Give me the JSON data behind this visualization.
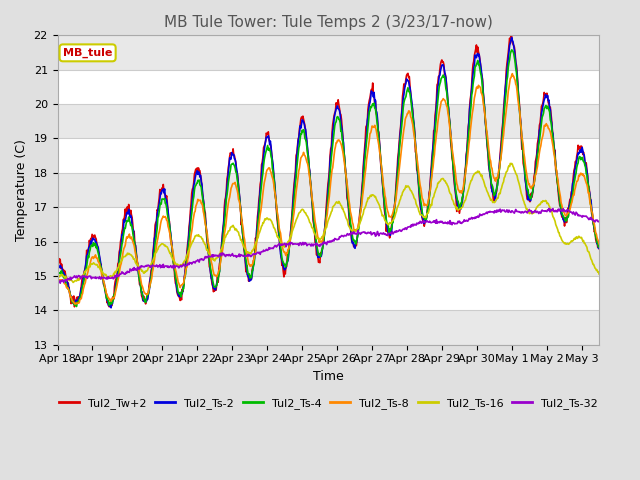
{
  "title": "MB Tule Tower: Tule Temps 2 (3/23/17-now)",
  "xlabel": "Time",
  "ylabel": "Temperature (C)",
  "ylim": [
    13.0,
    22.0
  ],
  "yticks": [
    13.0,
    14.0,
    15.0,
    16.0,
    17.0,
    18.0,
    19.0,
    20.0,
    21.0,
    22.0
  ],
  "xtick_labels": [
    "Apr 18",
    "Apr 19",
    "Apr 20",
    "Apr 21",
    "Apr 22",
    "Apr 23",
    "Apr 24",
    "Apr 25",
    "Apr 26",
    "Apr 27",
    "Apr 28",
    "Apr 29",
    "Apr 30",
    "May 1",
    "May 2",
    "May 3"
  ],
  "legend_entries": [
    "Tul2_Tw+2",
    "Tul2_Ts-2",
    "Tul2_Ts-4",
    "Tul2_Ts-8",
    "Tul2_Ts-16",
    "Tul2_Ts-32"
  ],
  "line_colors": [
    "#dd0000",
    "#0000dd",
    "#00bb00",
    "#ff8800",
    "#cccc00",
    "#9900cc"
  ],
  "background_color": "#e0e0e0",
  "plot_bg_color": "#ffffff",
  "grid_color": "#cccccc",
  "mb_tule_label": "MB_tule",
  "mb_tule_text_color": "#cc0000",
  "mb_tule_border_color": "#cccc00",
  "title_fontsize": 11,
  "axis_fontsize": 9,
  "tick_fontsize": 8,
  "legend_fontsize": 8
}
